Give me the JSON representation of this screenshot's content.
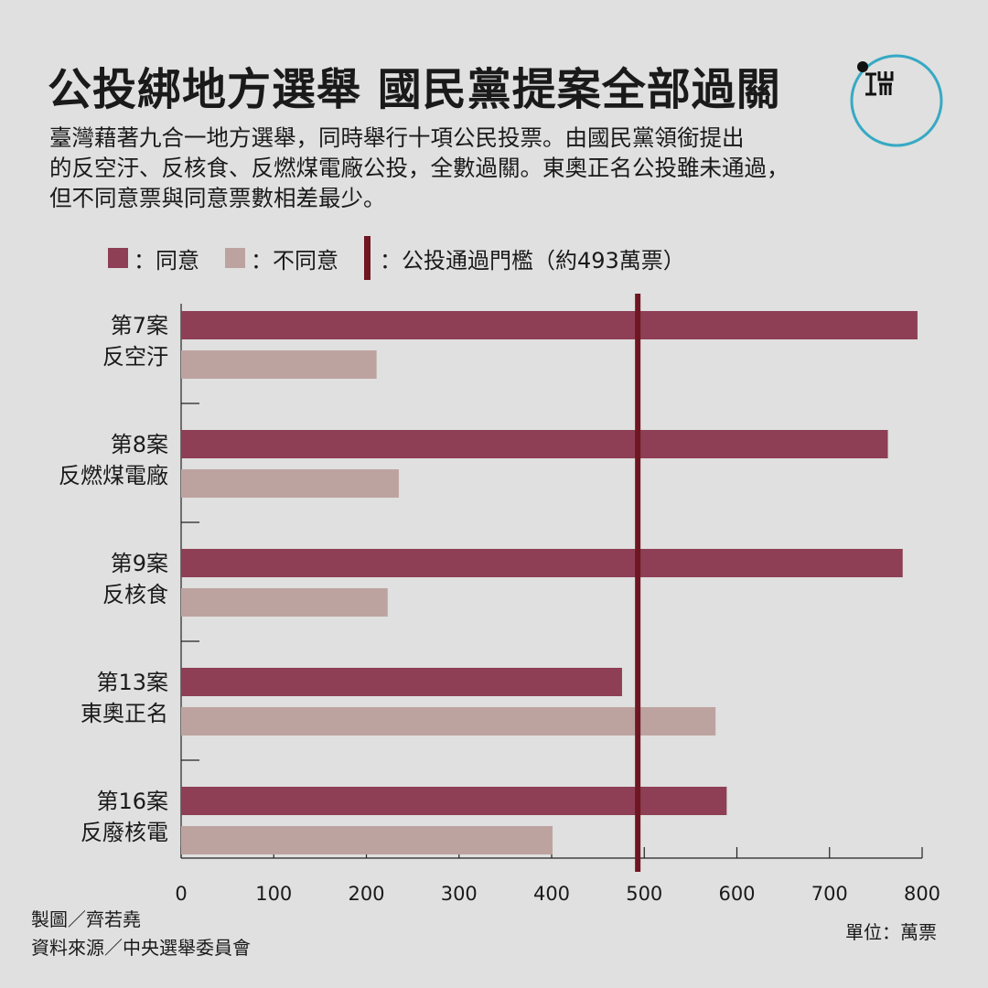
{
  "title": "公投綁地方選舉 國民黨提案全部過關",
  "intro": [
    "臺灣藉著九合一地方選舉，同時舉行十項公民投票。由國民黨領銜提出",
    "的反空汙、反核食、反燃煤電廠公投，全數過關。東奧正名公投雖未通過，",
    "但不同意票與同意票數相差最少。"
  ],
  "legend": {
    "agree": "：同意",
    "disagree": "：不同意",
    "threshold": "：公投通過門檻（約493萬票）"
  },
  "logo": {
    "icon": "ii-logo-icon",
    "ring_color": "#36a9c4"
  },
  "colors": {
    "agree": "#8e3f55",
    "disagree": "#bda3a0",
    "threshold": "#6e1621"
  },
  "chart_data": {
    "type": "bar",
    "orientation": "horizontal",
    "categories": [
      [
        "第7案",
        "反空汙"
      ],
      [
        "第8案",
        "反燃煤電廠"
      ],
      [
        "第9案",
        "反核食"
      ],
      [
        "第13案",
        "東奧正名"
      ],
      [
        "第16案",
        "反廢核電"
      ]
    ],
    "series": [
      {
        "name": "同意",
        "values": [
          795,
          763,
          779,
          476,
          589
        ]
      },
      {
        "name": "不同意",
        "values": [
          211,
          235,
          223,
          577,
          401
        ]
      }
    ],
    "threshold": {
      "value": 493,
      "label": "公投通過門檻（約493萬票）"
    },
    "x_ticks": [
      0,
      100,
      200,
      300,
      400,
      500,
      600,
      700,
      800
    ],
    "xlim": [
      0,
      800
    ],
    "grid": false,
    "legend_position": "top-left",
    "unit": "單位：萬票"
  },
  "credits": {
    "designer": "製圖／齊若堯",
    "source": "資料來源／中央選舉委員會"
  }
}
